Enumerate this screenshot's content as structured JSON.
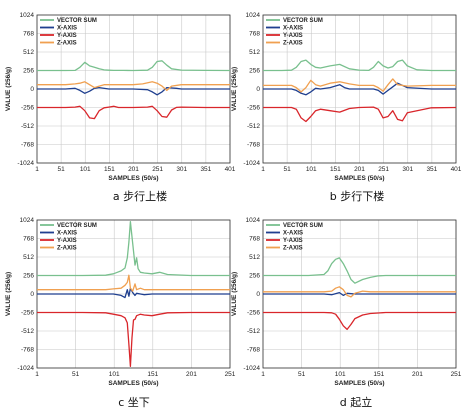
{
  "colors": {
    "vector_sum": "#79c08e",
    "x_axis": "#1f3f8f",
    "y_axis": "#d9262b",
    "z_axis": "#f0a050",
    "grid": "#c8c8c8",
    "frame": "#333333"
  },
  "chart_data": [
    {
      "type": "line",
      "caption": "a  步行上楼",
      "xlabel": "SAMPLES (50/s)",
      "ylabel": "VALUE (256/g)",
      "xlim": [
        1,
        401
      ],
      "ylim": [
        -1024,
        1024
      ],
      "xticks": [
        "1",
        "51",
        "101",
        "151",
        "201",
        "251",
        "301",
        "351",
        "401"
      ],
      "yticks": [
        "1024",
        "768",
        "512",
        "256",
        "0",
        "-256",
        "-512",
        "-768",
        "-1024"
      ],
      "legend": [
        "VECTOR SUM",
        "X-AXIS",
        "Y-AXIS",
        "Z-AXIS"
      ],
      "series": [
        {
          "name": "VECTOR SUM",
          "x": [
            1,
            60,
            80,
            90,
            100,
            110,
            120,
            130,
            140,
            150,
            160,
            180,
            200,
            230,
            240,
            250,
            260,
            270,
            280,
            300,
            350,
            401
          ],
          "values": [
            256,
            256,
            258,
            300,
            370,
            320,
            300,
            280,
            264,
            260,
            258,
            258,
            256,
            260,
            300,
            380,
            390,
            330,
            280,
            262,
            258,
            256
          ]
        },
        {
          "name": "X-AXIS",
          "x": [
            1,
            60,
            80,
            90,
            100,
            110,
            120,
            130,
            150,
            200,
            230,
            240,
            250,
            260,
            270,
            290,
            300,
            350,
            401
          ],
          "values": [
            0,
            0,
            10,
            -20,
            -60,
            -30,
            10,
            20,
            0,
            0,
            -10,
            -40,
            -80,
            -40,
            20,
            10,
            0,
            0,
            0
          ]
        },
        {
          "name": "Y-AXIS",
          "x": [
            1,
            60,
            80,
            90,
            100,
            110,
            120,
            130,
            140,
            150,
            160,
            170,
            200,
            230,
            240,
            250,
            260,
            270,
            280,
            290,
            300,
            350,
            401
          ],
          "values": [
            -256,
            -256,
            -250,
            -240,
            -300,
            -400,
            -410,
            -300,
            -260,
            -250,
            -240,
            -256,
            -256,
            -250,
            -240,
            -300,
            -380,
            -390,
            -290,
            -255,
            -250,
            -256,
            -256
          ]
        },
        {
          "name": "Z-AXIS",
          "x": [
            1,
            60,
            80,
            90,
            100,
            110,
            120,
            130,
            140,
            160,
            200,
            220,
            240,
            250,
            260,
            270,
            280,
            300,
            350,
            401
          ],
          "values": [
            60,
            60,
            70,
            80,
            100,
            60,
            20,
            40,
            60,
            60,
            60,
            70,
            100,
            80,
            40,
            -20,
            40,
            60,
            60,
            60
          ]
        }
      ]
    },
    {
      "type": "line",
      "caption": "b  步行下楼",
      "xlabel": "SAMPLES (50/s)",
      "ylabel": "VALUE (256/g)",
      "xlim": [
        1,
        401
      ],
      "ylim": [
        -1024,
        1024
      ],
      "xticks": [
        "1",
        "51",
        "101",
        "151",
        "201",
        "251",
        "301",
        "351",
        "401"
      ],
      "yticks": [
        "1024",
        "768",
        "512",
        "256",
        "0",
        "-256",
        "-512",
        "-768",
        "-1024"
      ],
      "legend": [
        "VECTOR SUM",
        "X-AXIS",
        "Y-AXIS",
        "Z-AXIS"
      ],
      "series": [
        {
          "name": "VECTOR SUM",
          "x": [
            1,
            40,
            60,
            70,
            80,
            90,
            100,
            110,
            120,
            140,
            160,
            180,
            200,
            220,
            230,
            240,
            250,
            260,
            270,
            280,
            290,
            300,
            320,
            350,
            401
          ],
          "values": [
            256,
            256,
            260,
            300,
            380,
            400,
            340,
            300,
            290,
            320,
            340,
            280,
            262,
            258,
            300,
            380,
            320,
            290,
            310,
            380,
            400,
            320,
            266,
            256,
            256
          ]
        },
        {
          "name": "X-AXIS",
          "x": [
            1,
            60,
            70,
            80,
            90,
            100,
            110,
            120,
            140,
            160,
            170,
            180,
            200,
            230,
            240,
            250,
            260,
            270,
            280,
            300,
            350,
            401
          ],
          "values": [
            0,
            0,
            -20,
            -60,
            -80,
            -40,
            10,
            0,
            20,
            60,
            20,
            0,
            0,
            0,
            -20,
            -70,
            -20,
            30,
            80,
            20,
            0,
            0
          ]
        },
        {
          "name": "Y-AXIS",
          "x": [
            1,
            60,
            70,
            80,
            90,
            100,
            110,
            120,
            140,
            160,
            180,
            200,
            230,
            240,
            250,
            260,
            270,
            280,
            290,
            300,
            350,
            401
          ],
          "values": [
            -256,
            -256,
            -280,
            -400,
            -450,
            -380,
            -300,
            -280,
            -300,
            -320,
            -270,
            -256,
            -250,
            -280,
            -400,
            -380,
            -300,
            -420,
            -440,
            -330,
            -260,
            -256
          ]
        },
        {
          "name": "Z-AXIS",
          "x": [
            1,
            60,
            70,
            80,
            90,
            100,
            110,
            120,
            140,
            160,
            180,
            200,
            230,
            240,
            250,
            260,
            270,
            280,
            300,
            350,
            401
          ],
          "values": [
            50,
            50,
            20,
            -40,
            20,
            120,
            60,
            40,
            80,
            100,
            70,
            50,
            50,
            20,
            -30,
            60,
            140,
            60,
            40,
            50,
            50
          ]
        }
      ]
    },
    {
      "type": "line",
      "caption": "c  坐下",
      "xlabel": "SAMPLES (50/s)",
      "ylabel": "VALUE (256/g)",
      "xlim": [
        1,
        251
      ],
      "ylim": [
        -1024,
        1024
      ],
      "xticks": [
        "1",
        "51",
        "101",
        "151",
        "201",
        "251"
      ],
      "yticks": [
        "1024",
        "768",
        "512",
        "256",
        "0",
        "-256",
        "-512",
        "-768",
        "-1024"
      ],
      "legend": [
        "VECTOR SUM",
        "X-AXIS",
        "Y-AXIS",
        "Z-AXIS"
      ],
      "series": [
        {
          "name": "VECTOR SUM",
          "x": [
            1,
            60,
            90,
            100,
            105,
            110,
            115,
            118,
            120,
            122,
            125,
            128,
            130,
            132,
            135,
            140,
            150,
            160,
            170,
            200,
            251
          ],
          "values": [
            256,
            256,
            260,
            280,
            300,
            320,
            360,
            500,
            720,
            1000,
            700,
            400,
            500,
            350,
            300,
            290,
            280,
            300,
            270,
            256,
            256
          ]
        },
        {
          "name": "X-AXIS",
          "x": [
            1,
            60,
            100,
            110,
            115,
            118,
            120,
            122,
            125,
            128,
            130,
            135,
            140,
            150,
            160,
            200,
            251
          ],
          "values": [
            0,
            0,
            0,
            -20,
            -50,
            60,
            -30,
            80,
            20,
            -20,
            10,
            0,
            -10,
            0,
            0,
            0,
            0
          ]
        },
        {
          "name": "Y-AXIS",
          "x": [
            1,
            60,
            90,
            100,
            110,
            115,
            118,
            120,
            122,
            124,
            126,
            128,
            130,
            135,
            140,
            150,
            160,
            170,
            200,
            251
          ],
          "values": [
            -256,
            -256,
            -260,
            -280,
            -300,
            -330,
            -400,
            -700,
            -1000,
            -600,
            -360,
            -350,
            -300,
            -280,
            -290,
            -300,
            -280,
            -260,
            -256,
            -256
          ]
        },
        {
          "name": "Z-AXIS",
          "x": [
            1,
            60,
            90,
            100,
            110,
            115,
            118,
            120,
            122,
            125,
            128,
            130,
            135,
            140,
            160,
            200,
            251
          ],
          "values": [
            60,
            60,
            60,
            70,
            80,
            120,
            160,
            260,
            80,
            40,
            140,
            60,
            80,
            60,
            60,
            60,
            60
          ]
        }
      ]
    },
    {
      "type": "line",
      "caption": "d  起立",
      "xlabel": "SAMPLES (50/s)",
      "ylabel": "VALUE (256/g)",
      "xlim": [
        1,
        251
      ],
      "ylim": [
        -1024,
        1024
      ],
      "xticks": [
        "1",
        "51",
        "101",
        "151",
        "201",
        "251"
      ],
      "yticks": [
        "1024",
        "768",
        "512",
        "256",
        "0",
        "-256",
        "-512",
        "-768",
        "-1024"
      ],
      "legend": [
        "VECTOR SUM",
        "X-AXIS",
        "Y-AXIS",
        "Z-AXIS"
      ],
      "series": [
        {
          "name": "VECTOR SUM",
          "x": [
            1,
            60,
            80,
            85,
            90,
            95,
            100,
            105,
            110,
            115,
            120,
            130,
            140,
            150,
            160,
            200,
            251
          ],
          "values": [
            256,
            256,
            270,
            320,
            420,
            480,
            500,
            420,
            320,
            200,
            150,
            200,
            230,
            250,
            256,
            256,
            256
          ]
        },
        {
          "name": "X-AXIS",
          "x": [
            1,
            80,
            90,
            100,
            105,
            110,
            120,
            130,
            200,
            251
          ],
          "values": [
            0,
            0,
            -10,
            20,
            -20,
            10,
            0,
            0,
            0,
            0
          ]
        },
        {
          "name": "Y-AXIS",
          "x": [
            1,
            80,
            90,
            95,
            100,
            105,
            110,
            115,
            120,
            130,
            140,
            160,
            200,
            251
          ],
          "values": [
            -256,
            -256,
            -260,
            -280,
            -350,
            -440,
            -490,
            -420,
            -340,
            -290,
            -270,
            -256,
            -256,
            -256
          ]
        },
        {
          "name": "Z-AXIS",
          "x": [
            1,
            80,
            90,
            95,
            100,
            105,
            110,
            115,
            120,
            130,
            140,
            200,
            251
          ],
          "values": [
            30,
            30,
            40,
            80,
            100,
            60,
            -20,
            -40,
            10,
            40,
            30,
            30,
            30
          ]
        }
      ]
    }
  ]
}
